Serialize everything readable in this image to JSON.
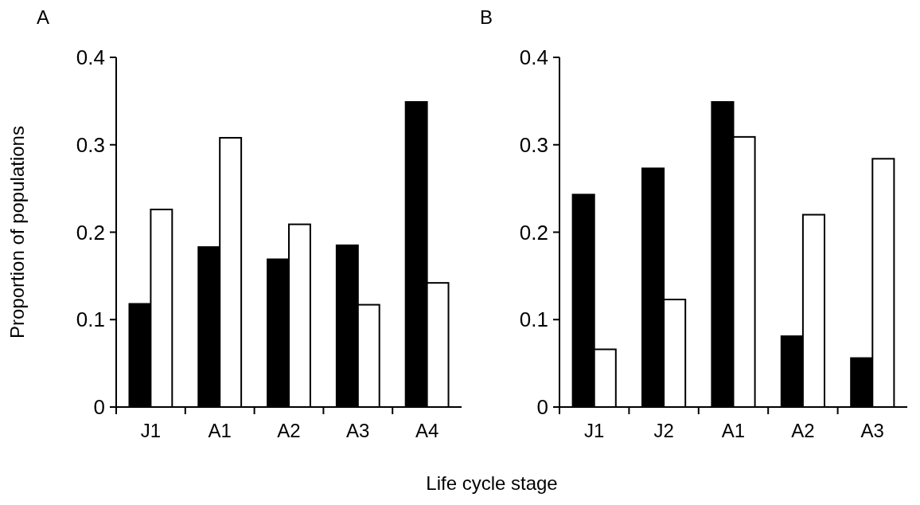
{
  "chart_data": [
    {
      "type": "bar",
      "title": "A",
      "ylabel": "Proportion of populations",
      "xlabel": "Life cycle stage",
      "categories": [
        "J1",
        "A1",
        "A2",
        "A3",
        "A4"
      ],
      "series": [
        {
          "color": "#000000",
          "values": [
            0.118,
            0.183,
            0.169,
            0.185,
            0.349
          ]
        },
        {
          "color": "#ffffff",
          "values": [
            0.226,
            0.308,
            0.209,
            0.117,
            0.142
          ]
        }
      ],
      "ylim": [
        0,
        0.4
      ],
      "yticks": [
        {
          "value": 0,
          "label": "0"
        },
        0.1,
        0.2,
        0.3,
        0.4
      ]
    },
    {
      "type": "bar",
      "title": "B",
      "categories": [
        "J1",
        "J2",
        "A1",
        "A2",
        "A3"
      ],
      "series": [
        {
          "color": "#000000",
          "values": [
            0.243,
            0.273,
            0.349,
            0.081,
            0.056
          ]
        },
        {
          "color": "#ffffff",
          "values": [
            0.066,
            0.123,
            0.309,
            0.22,
            0.284
          ]
        }
      ],
      "ylim": [
        0,
        0.4
      ],
      "yticks": [
        {
          "value": 0,
          "label": "0"
        },
        0.1,
        0.2,
        0.3,
        0.4
      ]
    }
  ]
}
